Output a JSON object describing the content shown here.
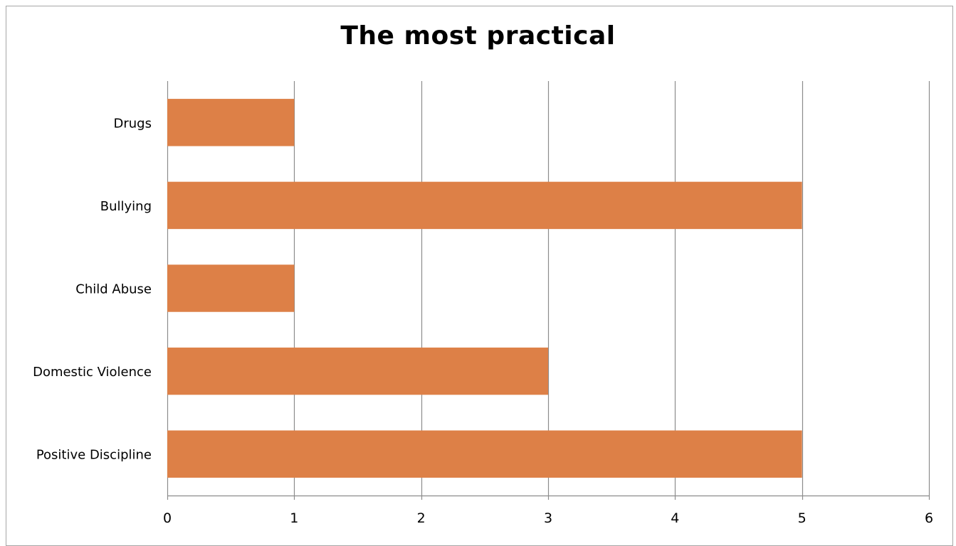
{
  "chart_data": {
    "type": "bar",
    "orientation": "horizontal",
    "title": "The most practical",
    "categories": [
      "Drugs",
      "Bullying",
      "Child Abuse",
      "Domestic Violence",
      "Positive Discipline"
    ],
    "values": [
      1,
      5,
      1,
      3,
      5
    ],
    "xlim": [
      0,
      6
    ],
    "x_ticks": [
      0,
      1,
      2,
      3,
      4,
      5,
      6
    ],
    "xlabel": "",
    "ylabel": "",
    "grid": true,
    "legend": "none",
    "bar_color": "#dd8047",
    "grid_color": "#8c8c8c"
  }
}
